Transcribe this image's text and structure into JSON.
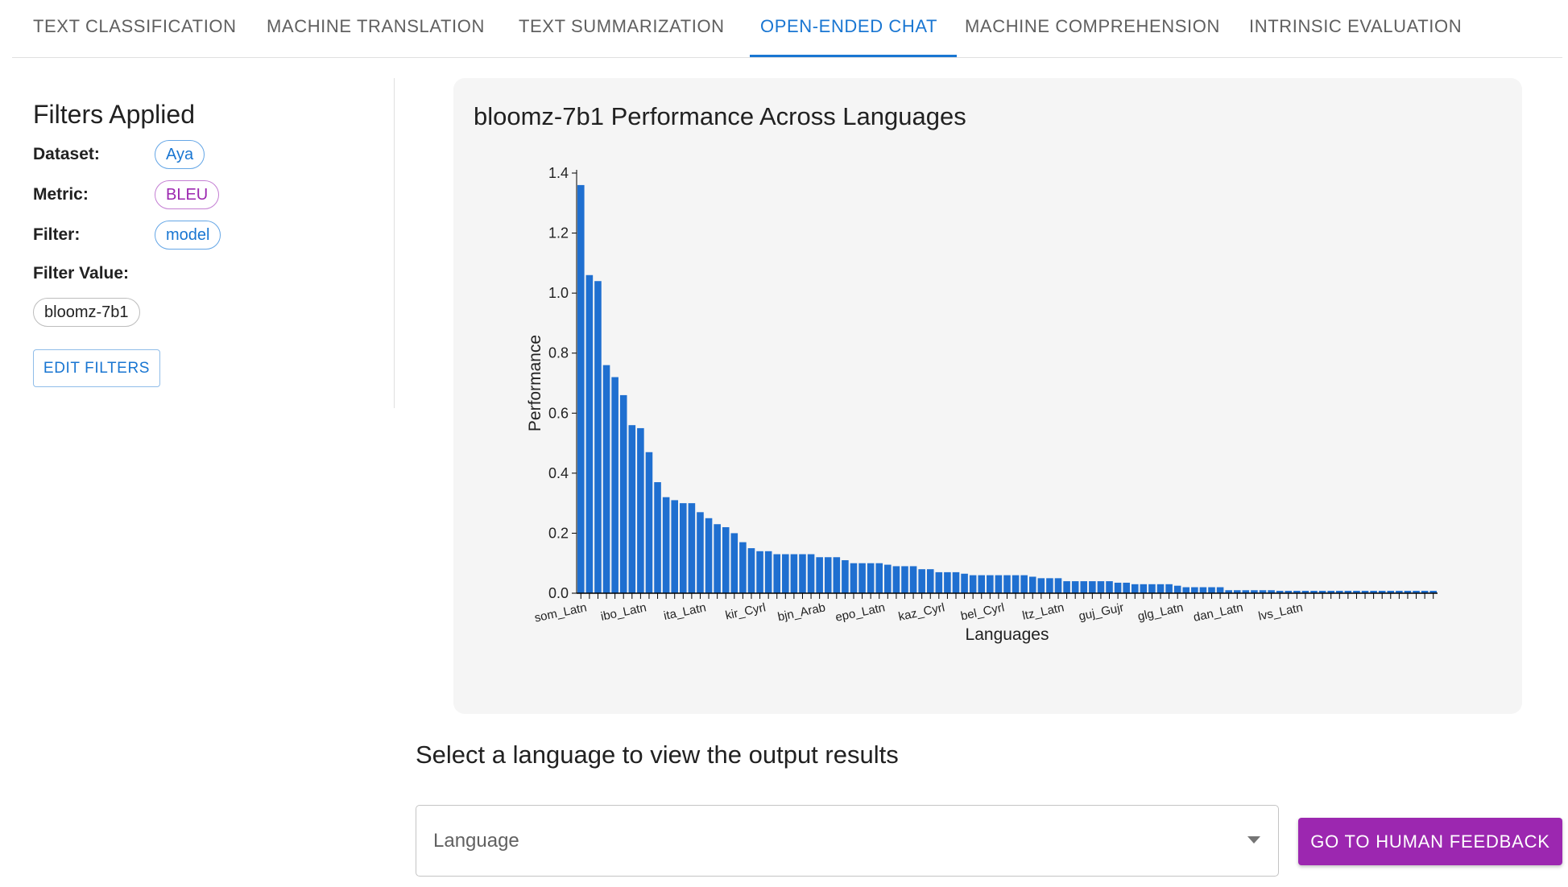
{
  "tabs": [
    {
      "label": "TEXT CLASSIFICATION",
      "active": false
    },
    {
      "label": "MACHINE TRANSLATION",
      "active": false
    },
    {
      "label": "TEXT SUMMARIZATION",
      "active": false
    },
    {
      "label": "OPEN-ENDED CHAT",
      "active": true
    },
    {
      "label": "MACHINE COMPREHENSION",
      "active": false
    },
    {
      "label": "INTRINSIC EVALUATION",
      "active": false
    }
  ],
  "filters": {
    "title": "Filters Applied",
    "dataset_label": "Dataset:",
    "dataset_value": "Aya",
    "metric_label": "Metric:",
    "metric_value": "BLEU",
    "filter_label": "Filter:",
    "filter_value": "model",
    "filter_value_label": "Filter Value:",
    "filter_value_value": "bloomz-7b1",
    "edit_button": "EDIT FILTERS"
  },
  "chart_title": "bloomz-7b1 Performance Across Languages",
  "chart_data": {
    "type": "bar",
    "title": "bloomz-7b1 Performance Across Languages",
    "xlabel": "Languages",
    "ylabel": "Performance",
    "ylim": [
      0,
      1.4
    ],
    "yticks": [
      0.0,
      0.2,
      0.4,
      0.6,
      0.8,
      1.0,
      1.2,
      1.4
    ],
    "bar_color": "#1f6fd0",
    "values": [
      1.36,
      1.06,
      1.04,
      0.76,
      0.72,
      0.66,
      0.56,
      0.55,
      0.47,
      0.37,
      0.32,
      0.31,
      0.3,
      0.3,
      0.27,
      0.25,
      0.23,
      0.22,
      0.2,
      0.17,
      0.15,
      0.14,
      0.14,
      0.13,
      0.13,
      0.13,
      0.13,
      0.13,
      0.12,
      0.12,
      0.12,
      0.11,
      0.1,
      0.1,
      0.1,
      0.1,
      0.095,
      0.09,
      0.09,
      0.09,
      0.08,
      0.08,
      0.07,
      0.07,
      0.07,
      0.065,
      0.06,
      0.06,
      0.06,
      0.06,
      0.06,
      0.06,
      0.06,
      0.055,
      0.05,
      0.05,
      0.05,
      0.04,
      0.04,
      0.04,
      0.04,
      0.04,
      0.04,
      0.035,
      0.035,
      0.03,
      0.03,
      0.03,
      0.03,
      0.03,
      0.025,
      0.02,
      0.02,
      0.02,
      0.02,
      0.02,
      0.01,
      0.01,
      0.01,
      0.01,
      0.01,
      0.01,
      0.008,
      0.008,
      0.008,
      0.008,
      0.008,
      0.008,
      0.008,
      0.008,
      0.008,
      0.008,
      0.008,
      0.008,
      0.008,
      0.008,
      0.008,
      0.008,
      0.008,
      0.008,
      0.008
    ],
    "tick_labels": [
      {
        "index": 0,
        "label": "som_Latn"
      },
      {
        "index": 7,
        "label": "ibo_Latn"
      },
      {
        "index": 14,
        "label": "ita_Latn"
      },
      {
        "index": 21,
        "label": "kir_Cyrl"
      },
      {
        "index": 28,
        "label": "bjn_Arab"
      },
      {
        "index": 35,
        "label": "epo_Latn"
      },
      {
        "index": 42,
        "label": "kaz_Cyrl"
      },
      {
        "index": 49,
        "label": "bel_Cyrl"
      },
      {
        "index": 56,
        "label": "ltz_Latn"
      },
      {
        "index": 63,
        "label": "guj_Gujr"
      },
      {
        "index": 70,
        "label": "glg_Latn"
      },
      {
        "index": 77,
        "label": "dan_Latn"
      },
      {
        "index": 84,
        "label": "lvs_Latn"
      }
    ]
  },
  "select_prompt": "Select a language to view the output results",
  "language_select": {
    "placeholder": "Language"
  },
  "human_feedback_button": "GO TO HUMAN FEEDBACK"
}
